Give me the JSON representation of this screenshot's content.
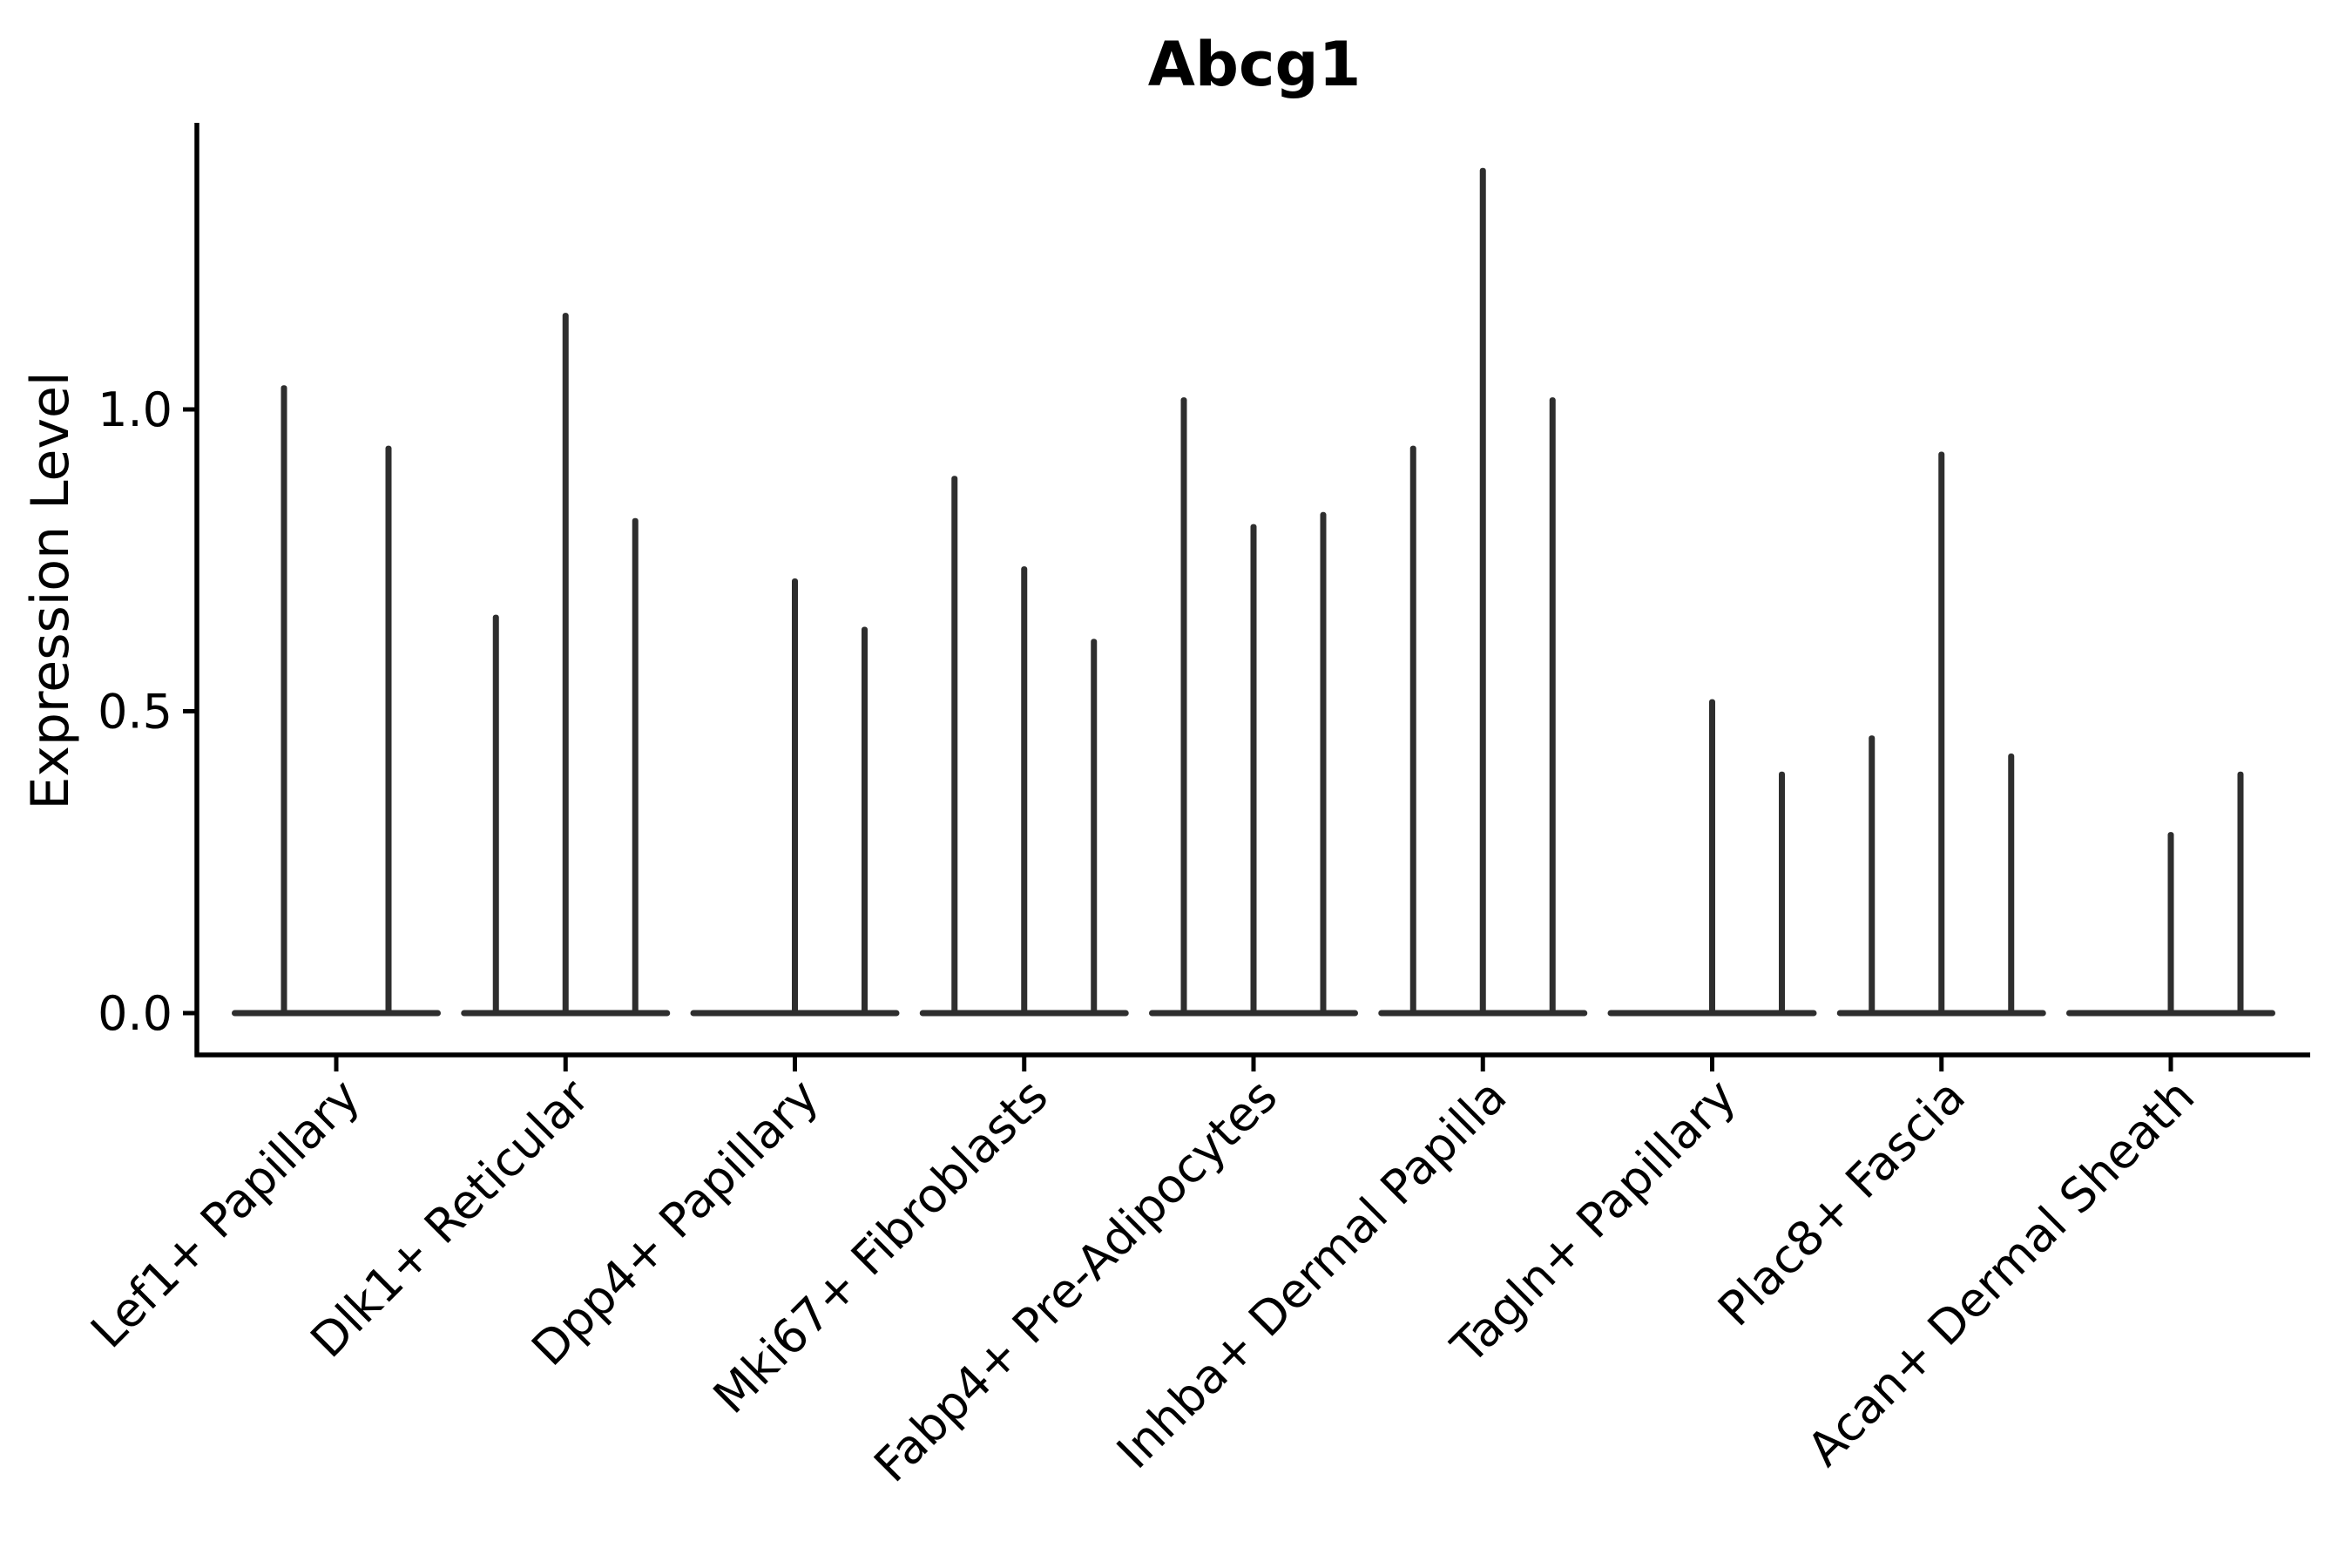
{
  "figure": {
    "title": "Abcg1",
    "y_axis_label": "Expression Level"
  },
  "chart_data": {
    "type": "violin",
    "title": "Abcg1",
    "xlabel": "",
    "ylabel": "Expression Level",
    "yticks": [
      "0.0",
      "0.5",
      "1.0"
    ],
    "ytick_values": [
      0.0,
      0.5,
      1.0
    ],
    "ylim": [
      -0.07,
      1.47
    ],
    "grid": false,
    "legend": "none",
    "x_tick_rotation": 45,
    "categories": [
      "Lef1+ Papillary",
      "Dlk1+ Reticular",
      "Dpp4+ Papillary",
      "Mki67+ Fibroblasts",
      "Fabp4+ Pre-Adipocytes",
      "Inhba+ Dermal Papilla",
      "Tagln+ Papillary",
      "Plac8+ Fascia",
      "Acan+ Dermal Sheath"
    ],
    "groups": [
      {
        "category": "Lef1+ Papillary",
        "violin_maxima": [
          1.04,
          0.94
        ]
      },
      {
        "category": "Dlk1+ Reticular",
        "violin_maxima": [
          0.66,
          1.16,
          0.82
        ]
      },
      {
        "category": "Dpp4+ Papillary",
        "violin_maxima": [
          0,
          0.72,
          0.64
        ]
      },
      {
        "category": "Mki67+ Fibroblasts",
        "violin_maxima": [
          0.89,
          0.74,
          0.62
        ]
      },
      {
        "category": "Fabp4+ Pre-Adipocytes",
        "violin_maxima": [
          1.02,
          0.81,
          0.83
        ]
      },
      {
        "category": "Inhba+ Dermal Papilla",
        "violin_maxima": [
          0.94,
          1.4,
          1.02
        ]
      },
      {
        "category": "Tagln+ Papillary",
        "violin_maxima": [
          0,
          0.52,
          0.4
        ]
      },
      {
        "category": "Plac8+ Fascia",
        "violin_maxima": [
          0.46,
          0.93,
          0.43
        ]
      },
      {
        "category": "Acan+ Dermal Sheath",
        "violin_maxima": [
          0,
          0.3,
          0.4
        ]
      }
    ],
    "colors": {
      "violin": "#2e2e2e",
      "axis": "#000000",
      "text": "#000000",
      "background": "#ffffff"
    }
  }
}
